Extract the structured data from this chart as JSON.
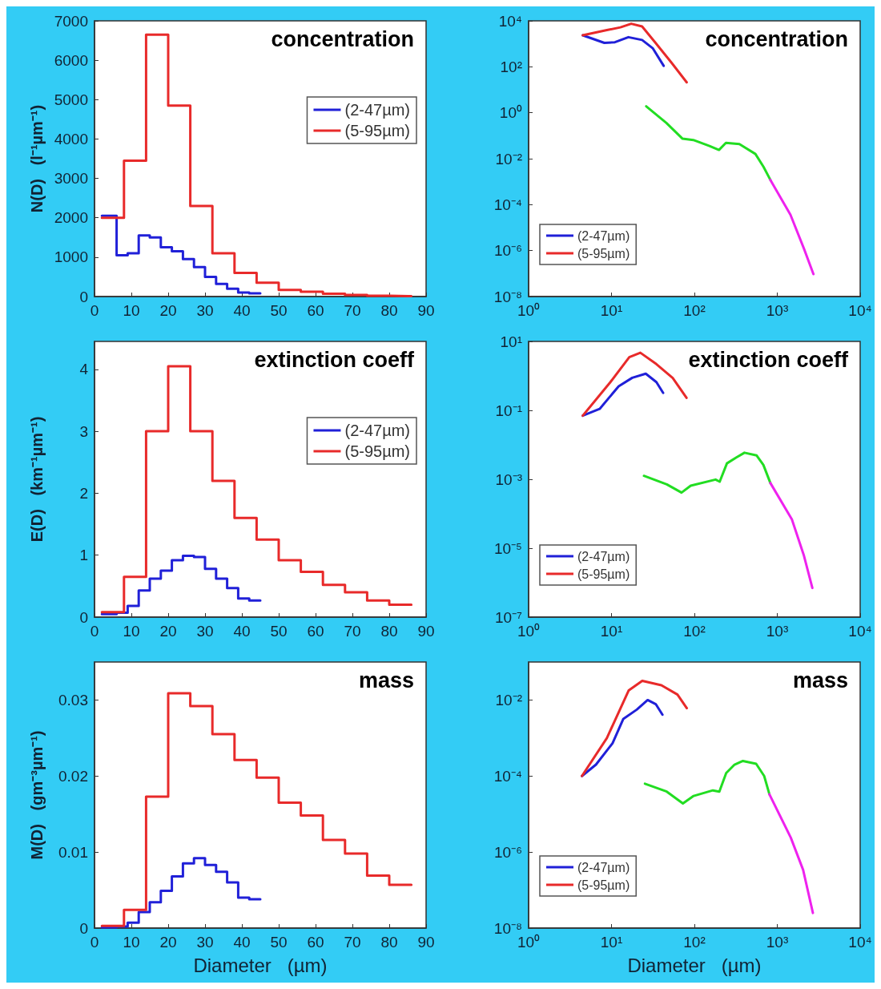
{
  "chart_data": [
    {
      "type": "step",
      "title": "concentration",
      "ylabel": "N(D)   (l⁻¹µm⁻¹)",
      "xlim": [
        0,
        90
      ],
      "ylim": [
        0,
        7000
      ],
      "xticks": [
        0,
        10,
        20,
        30,
        40,
        50,
        60,
        70,
        80,
        90
      ],
      "yticks": [
        0,
        1000,
        2000,
        3000,
        4000,
        5000,
        6000,
        7000
      ],
      "legend": "top right",
      "series": [
        {
          "name": "(2-47µm)",
          "color": "#2020d8",
          "x": [
            2,
            6,
            9,
            12,
            15,
            18,
            21,
            24,
            27,
            30,
            33,
            36,
            39,
            42,
            45
          ],
          "values": [
            2050,
            1050,
            1100,
            1550,
            1500,
            1250,
            1150,
            950,
            750,
            500,
            320,
            200,
            100,
            80,
            80
          ]
        },
        {
          "name": "(5-95µm)",
          "color": "#e82a2a",
          "x": [
            2,
            8,
            14,
            20,
            26,
            32,
            38,
            44,
            50,
            56,
            62,
            68,
            74,
            80,
            86
          ],
          "values": [
            2000,
            3450,
            6650,
            4850,
            2300,
            1100,
            600,
            350,
            170,
            120,
            70,
            40,
            20,
            10,
            10
          ]
        }
      ]
    },
    {
      "type": "line",
      "title": "concentration",
      "log": "xy",
      "xlim": [
        1,
        10000
      ],
      "ylim": [
        1e-08,
        10000
      ],
      "xticks": [
        {
          "value": 1,
          "label": "10⁰"
        },
        {
          "value": 10,
          "label": "10¹"
        },
        {
          "value": 100,
          "label": "10²"
        },
        {
          "value": 1000,
          "label": "10³"
        },
        {
          "value": 10000,
          "label": "10⁴"
        }
      ],
      "yticks": [
        {
          "value": 1e-08,
          "label": "10⁻⁸"
        },
        {
          "value": 1e-06,
          "label": "10⁻⁶"
        },
        {
          "value": 0.0001,
          "label": "10⁻⁴"
        },
        {
          "value": 0.01,
          "label": "10⁻²"
        },
        {
          "value": 1,
          "label": "10⁰"
        },
        {
          "value": 100,
          "label": "10²"
        },
        {
          "value": 10000,
          "label": "10⁴"
        }
      ],
      "legend": "bottom left",
      "series": [
        {
          "name": "(2-47µm)",
          "color": "#2020d8",
          "x": [
            4.5,
            8.2,
            11,
            16,
            23.4,
            31.6,
            42.6
          ],
          "values": [
            2350,
            1100,
            1170,
            1950,
            1470,
            630,
            110
          ]
        },
        {
          "name": "(5-95µm)",
          "color": "#e82a2a",
          "x": [
            4.5,
            8.8,
            12.8,
            17.3,
            23.4,
            34,
            53,
            80.8
          ],
          "values": [
            2350,
            3950,
            5200,
            7500,
            5700,
            1100,
            150,
            21
          ]
        },
        {
          "color": "#22dd22",
          "x": [
            26.2,
            45.9,
            72,
            97,
            152,
            198,
            240,
            349,
            545,
            683,
            825
          ],
          "values": [
            1.9,
            0.36,
            0.074,
            0.065,
            0.036,
            0.024,
            0.049,
            0.043,
            0.016,
            0.0044,
            0.0012
          ]
        },
        {
          "color": "#ee22ee",
          "x": [
            825,
            1443,
            2100,
            2730
          ],
          "values": [
            0.0012,
            3.6e-05,
            1.2e-06,
            9.5e-08
          ]
        }
      ]
    },
    {
      "type": "step",
      "title": "extinction coeff",
      "ylabel": "E(D)   (km⁻¹µm⁻¹)",
      "xlim": [
        0,
        90
      ],
      "ylim": [
        0,
        4.45
      ],
      "xticks": [
        0,
        10,
        20,
        30,
        40,
        50,
        60,
        70,
        80,
        90
      ],
      "yticks": [
        0,
        1,
        2,
        3,
        4
      ],
      "legend": "top right",
      "series": [
        {
          "name": "(2-47µm)",
          "color": "#2020d8",
          "x": [
            2,
            6,
            9,
            12,
            15,
            18,
            21,
            24,
            27,
            30,
            33,
            36,
            39,
            42,
            45
          ],
          "values": [
            0.05,
            0.07,
            0.18,
            0.43,
            0.62,
            0.75,
            0.92,
            0.99,
            0.97,
            0.78,
            0.62,
            0.47,
            0.3,
            0.27,
            0.27
          ]
        },
        {
          "name": "(5-95µm)",
          "color": "#e82a2a",
          "x": [
            2,
            8,
            14,
            20,
            26,
            32,
            38,
            44,
            50,
            56,
            62,
            68,
            74,
            80,
            86
          ],
          "values": [
            0.08,
            0.65,
            3,
            4.05,
            3,
            2.2,
            1.6,
            1.25,
            0.92,
            0.73,
            0.52,
            0.4,
            0.27,
            0.2,
            0.2
          ]
        }
      ]
    },
    {
      "type": "line",
      "title": "extinction coeff",
      "log": "xy",
      "xlim": [
        1,
        10000
      ],
      "ylim": [
        1e-07,
        10
      ],
      "xticks": [
        {
          "value": 1,
          "label": "10⁰"
        },
        {
          "value": 10,
          "label": "10¹"
        },
        {
          "value": 100,
          "label": "10²"
        },
        {
          "value": 1000,
          "label": "10³"
        },
        {
          "value": 10000,
          "label": "10⁴"
        }
      ],
      "yticks": [
        {
          "value": 1e-07,
          "label": "10⁻⁷"
        },
        {
          "value": 1e-05,
          "label": "10⁻⁵"
        },
        {
          "value": 0.001,
          "label": "10⁻³"
        },
        {
          "value": 0.1,
          "label": "10⁻¹"
        },
        {
          "value": 10,
          "label": "10¹"
        }
      ],
      "legend": "bottom left",
      "series": [
        {
          "name": "(2-47µm)",
          "color": "#2020d8",
          "x": [
            4.5,
            7.2,
            12.2,
            17.8,
            25.9,
            34.8,
            42
          ],
          "values": [
            0.07,
            0.11,
            0.5,
            0.88,
            1.16,
            0.66,
            0.32
          ]
        },
        {
          "name": "(5-95µm)",
          "color": "#e82a2a",
          "x": [
            4.5,
            9.7,
            16.4,
            22.3,
            34.8,
            54.8,
            80.4
          ],
          "values": [
            0.07,
            0.66,
            3.5,
            4.7,
            2.2,
            0.87,
            0.23
          ]
        },
        {
          "color": "#22dd22",
          "x": [
            24.6,
            46.5,
            70,
            90.3,
            180,
            202,
            247,
            321,
            402,
            564,
            680,
            825
          ],
          "values": [
            0.00126,
            0.00071,
            0.00041,
            0.00065,
            0.00098,
            0.00085,
            0.0029,
            0.0043,
            0.0059,
            0.0049,
            0.0026,
            0.00078
          ]
        },
        {
          "color": "#ee22ee",
          "x": [
            825,
            1500,
            2100,
            2650
          ],
          "values": [
            0.00078,
            6.9e-05,
            6e-06,
            7e-07
          ]
        }
      ]
    },
    {
      "type": "step",
      "title": "mass",
      "ylabel": "M(D)   (gm⁻³µm⁻¹)",
      "xlabel": "Diameter   (µm)",
      "xlim": [
        0,
        90
      ],
      "ylim": [
        0,
        0.035
      ],
      "xticks": [
        0,
        10,
        20,
        30,
        40,
        50,
        60,
        70,
        80,
        90
      ],
      "yticks": [
        0,
        0.01,
        0.02,
        0.03
      ],
      "series": [
        {
          "color": "#2020d8",
          "x": [
            2,
            6,
            9,
            12,
            15,
            18,
            21,
            24,
            27,
            30,
            33,
            36,
            39,
            42,
            45
          ],
          "values": [
            0.0001,
            0.0002,
            0.0007,
            0.0021,
            0.0034,
            0.0049,
            0.0068,
            0.0085,
            0.0092,
            0.0083,
            0.0074,
            0.006,
            0.004,
            0.0038,
            0.0038
          ]
        },
        {
          "color": "#e82a2a",
          "x": [
            2,
            8,
            14,
            20,
            26,
            32,
            38,
            44,
            50,
            56,
            62,
            68,
            74,
            80,
            86
          ],
          "values": [
            0.0003,
            0.0024,
            0.0173,
            0.0309,
            0.0292,
            0.0255,
            0.0221,
            0.0198,
            0.0165,
            0.0148,
            0.0116,
            0.0098,
            0.0069,
            0.0057,
            0.0057
          ]
        }
      ]
    },
    {
      "type": "line",
      "title": "mass",
      "log": "xy",
      "xlabel": "Diameter   (µm)",
      "xlim": [
        1,
        10000
      ],
      "ylim": [
        1e-08,
        0.1
      ],
      "xticks": [
        {
          "value": 1,
          "label": "10⁰"
        },
        {
          "value": 10,
          "label": "10¹"
        },
        {
          "value": 100,
          "label": "10²"
        },
        {
          "value": 1000,
          "label": "10³"
        },
        {
          "value": 10000,
          "label": "10⁴"
        }
      ],
      "yticks": [
        {
          "value": 1e-08,
          "label": "10⁻⁸"
        },
        {
          "value": 1e-06,
          "label": "10⁻⁶"
        },
        {
          "value": 0.0001,
          "label": "10⁻⁴"
        },
        {
          "value": 0.01,
          "label": "10⁻²"
        }
      ],
      "legend": "bottom left",
      "series": [
        {
          "name": "(2-47µm)",
          "color": "#2020d8",
          "x": [
            4.4,
            6.5,
            10.3,
            13.9,
            20.2,
            27.3,
            34.2,
            41.2
          ],
          "values": [
            0.0001,
            0.0002,
            0.00073,
            0.0032,
            0.0056,
            0.01,
            0.0078,
            0.0041
          ]
        },
        {
          "name": "(5-95µm)",
          "color": "#e82a2a",
          "x": [
            4.4,
            8.8,
            16.1,
            23.5,
            40,
            62.5,
            81
          ],
          "values": [
            0.0001,
            0.001,
            0.0178,
            0.032,
            0.0245,
            0.0139,
            0.0061
          ]
        },
        {
          "color": "#22dd22",
          "x": [
            25.3,
            46.4,
            72.7,
            98,
            167,
            200,
            242,
            305,
            385,
            556,
            695,
            804
          ],
          "values": [
            6.3e-05,
            3.9e-05,
            1.9e-05,
            3e-05,
            4.2e-05,
            3.9e-05,
            0.00012,
            0.0002,
            0.00025,
            0.00021,
            0.0001,
            3.3e-05
          ]
        },
        {
          "color": "#ee22ee",
          "x": [
            804,
            1455,
            2050,
            2690
          ],
          "values": [
            3.3e-05,
            2.4e-06,
            3.4e-07,
            2.5e-08
          ]
        }
      ]
    }
  ]
}
